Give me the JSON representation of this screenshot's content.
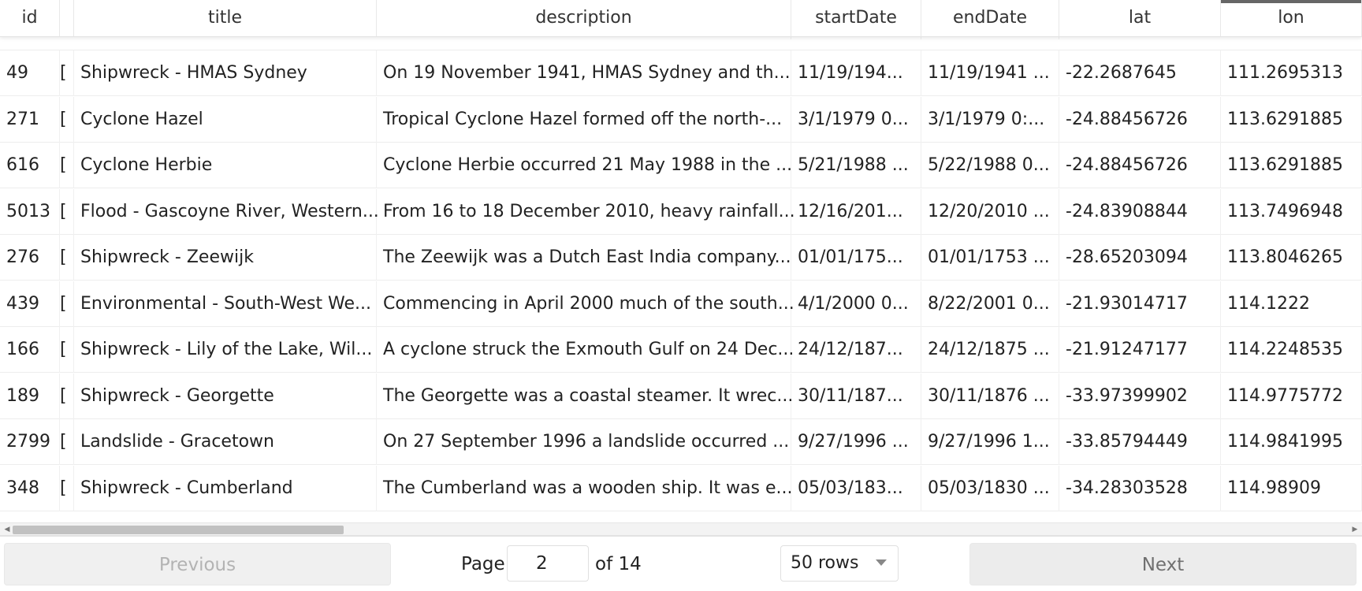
{
  "table": {
    "columns": [
      "id",
      "",
      "title",
      "description",
      "startDate",
      "endDate",
      "lat",
      "lon"
    ],
    "partial_row": {
      "description": "..., ...",
      "startDate": "...",
      "endDate": "..."
    },
    "rows": [
      {
        "id": "49",
        "flag": "[",
        "title": "Shipwreck - HMAS Sydney",
        "description": "On 19 November 1941, HMAS Sydney and th...",
        "startDate": "11/19/194...",
        "endDate": "11/19/1941 ...",
        "lat": "-22.2687645",
        "lon": "111.2695313"
      },
      {
        "id": "271",
        "flag": "[",
        "title": "Cyclone Hazel",
        "description": "Tropical Cyclone Hazel formed off the north-...",
        "startDate": "3/1/1979 0...",
        "endDate": "3/1/1979 0:...",
        "lat": "-24.88456726",
        "lon": "113.6291885"
      },
      {
        "id": "616",
        "flag": "[",
        "title": "Cyclone Herbie",
        "description": "Cyclone Herbie occurred 21 May 1988 in the ...",
        "startDate": "5/21/1988 ...",
        "endDate": "5/22/1988 0...",
        "lat": "-24.88456726",
        "lon": "113.6291885"
      },
      {
        "id": "5013",
        "flag": "[",
        "title": "Flood - Gascoyne River, Western...",
        "description": "From 16 to 18 December 2010, heavy rainfall...",
        "startDate": "12/16/201...",
        "endDate": "12/20/2010 ...",
        "lat": "-24.83908844",
        "lon": "113.7496948"
      },
      {
        "id": "276",
        "flag": "[",
        "title": "Shipwreck - Zeewijk",
        "description": "The Zeewijk was a Dutch East India company...",
        "startDate": "01/01/175...",
        "endDate": "01/01/1753 ...",
        "lat": "-28.65203094",
        "lon": "113.8046265"
      },
      {
        "id": "439",
        "flag": "[",
        "title": "Environmental - South-West We...",
        "description": "Commencing in April 2000 much of the south...",
        "startDate": "4/1/2000 0...",
        "endDate": "8/22/2001 0...",
        "lat": "-21.93014717",
        "lon": "114.1222"
      },
      {
        "id": "166",
        "flag": "[",
        "title": "Shipwreck - Lily of the Lake, Wil...",
        "description": "A cyclone struck the Exmouth Gulf on 24 Dec...",
        "startDate": "24/12/187...",
        "endDate": "24/12/1875 ...",
        "lat": "-21.91247177",
        "lon": "114.2248535"
      },
      {
        "id": "189",
        "flag": "[",
        "title": "Shipwreck - Georgette",
        "description": "The Georgette was a coastal steamer. It wrec...",
        "startDate": "30/11/187...",
        "endDate": "30/11/1876 ...",
        "lat": "-33.97399902",
        "lon": "114.9775772"
      },
      {
        "id": "2799",
        "flag": "[",
        "title": "Landslide - Gracetown",
        "description": "On 27 September 1996 a landslide occurred ...",
        "startDate": "9/27/1996 ...",
        "endDate": "9/27/1996 1...",
        "lat": "-33.85794449",
        "lon": "114.9841995"
      },
      {
        "id": "348",
        "flag": "[",
        "title": "Shipwreck - Cumberland",
        "description": "The Cumberland was a wooden ship. It was e...",
        "startDate": "05/03/183...",
        "endDate": "05/03/1830 ...",
        "lat": "-34.28303528",
        "lon": "114.98909"
      }
    ]
  },
  "pagination": {
    "previous_label": "Previous",
    "page_label": "Page",
    "page_value": "2",
    "of_label": "of 14",
    "rows_selected": "50 rows",
    "next_label": "Next"
  }
}
